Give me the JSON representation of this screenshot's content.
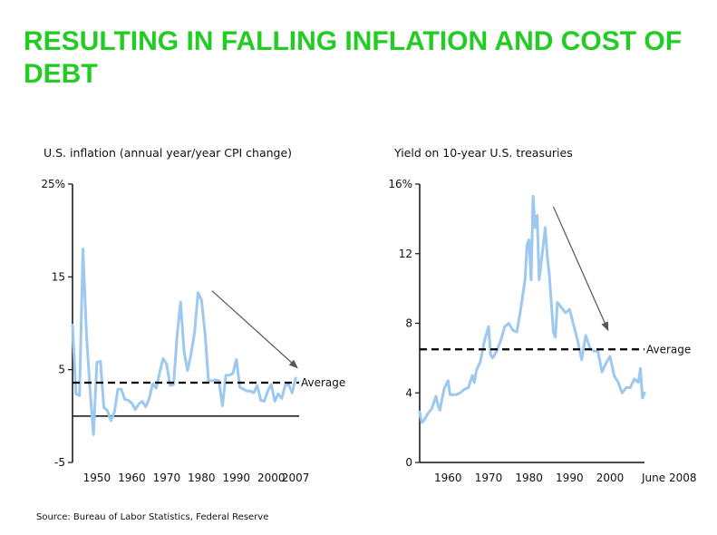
{
  "slide": {
    "title": "RESULTING IN FALLING INFLATION AND COST OF DEBT",
    "source": "Source:  Bureau of Labor Statistics, Federal Reserve"
  },
  "colors": {
    "title": "#22cc22",
    "series": "#9dc8f0",
    "axis": "#111111",
    "arrow": "#555555"
  },
  "chart_data": [
    {
      "type": "line",
      "title": "U.S. inflation (annual year/year CPI change)",
      "xlabel": "",
      "ylabel": "",
      "xlim": [
        1943,
        2008
      ],
      "ylim": [
        -5,
        25
      ],
      "x_ticks": [
        1950,
        1960,
        1970,
        1980,
        1990,
        2000,
        2007
      ],
      "x_tick_labels": [
        "1950",
        "1960",
        "1970",
        "1980",
        "1990",
        "2000",
        "2007"
      ],
      "y_ticks": [
        -5,
        5,
        15,
        25
      ],
      "y_tick_labels": [
        "-5",
        "5",
        "15",
        "25%"
      ],
      "zero_line": true,
      "grid": false,
      "average": {
        "value": 3.6,
        "label": "Average"
      },
      "trend_arrow": {
        "from": [
          1983,
          13.5
        ],
        "to": [
          2007.5,
          5.2
        ]
      },
      "series": [
        {
          "x": [
            1943,
            1944,
            1945,
            1946,
            1947,
            1948,
            1949,
            1950,
            1951,
            1952,
            1953,
            1954,
            1955,
            1956,
            1957,
            1958,
            1959,
            1960,
            1961,
            1962,
            1963,
            1964,
            1965,
            1966,
            1967,
            1968,
            1969,
            1970,
            1971,
            1972,
            1973,
            1974,
            1975,
            1976,
            1977,
            1978,
            1979,
            1980,
            1981,
            1982,
            1983,
            1984,
            1985,
            1986,
            1987,
            1988,
            1989,
            1990,
            1991,
            1992,
            1993,
            1994,
            1995,
            1996,
            1997,
            1998,
            1999,
            2000,
            2001,
            2002,
            2003,
            2004,
            2005,
            2006,
            2007
          ],
          "values": [
            9.8,
            2.4,
            2.2,
            18.0,
            8.8,
            3.0,
            -2.0,
            5.8,
            5.9,
            0.9,
            0.6,
            -0.5,
            0.4,
            2.9,
            2.9,
            1.8,
            1.7,
            1.4,
            0.7,
            1.3,
            1.6,
            1.0,
            1.9,
            3.5,
            3.0,
            4.7,
            6.2,
            5.6,
            3.3,
            3.4,
            8.7,
            12.3,
            6.9,
            4.9,
            6.7,
            9.0,
            13.3,
            12.5,
            8.9,
            3.8,
            3.8,
            3.9,
            3.8,
            1.1,
            4.4,
            4.4,
            4.6,
            6.1,
            3.1,
            2.9,
            2.7,
            2.7,
            2.5,
            3.3,
            1.7,
            1.6,
            2.7,
            3.4,
            1.6,
            2.4,
            1.9,
            3.3,
            3.4,
            2.5,
            4.1
          ]
        }
      ]
    },
    {
      "type": "line",
      "title": "Yield on 10-year U.S. treasuries",
      "xlabel": "",
      "ylabel": "",
      "xlim": [
        1953,
        2008.5
      ],
      "ylim": [
        0,
        16
      ],
      "x_ticks": [
        1960,
        1970,
        1980,
        1990,
        2000,
        2008.5
      ],
      "x_tick_labels": [
        "1960",
        "1970",
        "1980",
        "1990",
        "2000",
        "June 2008"
      ],
      "y_ticks": [
        0,
        4,
        8,
        12,
        16
      ],
      "y_tick_labels": [
        "0",
        "4",
        "8",
        "12",
        "16%"
      ],
      "grid": false,
      "average": {
        "value": 6.5,
        "label": "Average"
      },
      "trend_arrow": {
        "from": [
          1986,
          14.7
        ],
        "to": [
          1999.5,
          7.6
        ]
      },
      "series": [
        {
          "x": [
            1953,
            1953.5,
            1954,
            1955,
            1956,
            1957,
            1957.5,
            1958,
            1959,
            1960,
            1960.5,
            1961,
            1962,
            1963,
            1964,
            1965,
            1966,
            1966.5,
            1967,
            1968,
            1969,
            1970,
            1970.5,
            1971,
            1972,
            1973,
            1974,
            1975,
            1976,
            1977,
            1978,
            1979,
            1979.5,
            1980,
            1980.5,
            1981,
            1981.5,
            1982,
            1982.5,
            1983,
            1984,
            1984.5,
            1985,
            1986,
            1986.5,
            1987,
            1988,
            1989,
            1990,
            1991,
            1992,
            1993,
            1994,
            1995,
            1996,
            1997,
            1998,
            1999,
            2000,
            2001,
            2002,
            2003,
            2004,
            2005,
            2006,
            2007,
            2007.5,
            2008,
            2008.5
          ],
          "values": [
            2.9,
            2.3,
            2.4,
            2.8,
            3.1,
            3.8,
            3.3,
            3.0,
            4.2,
            4.7,
            3.9,
            3.9,
            3.9,
            4.0,
            4.2,
            4.3,
            5.0,
            4.6,
            5.3,
            5.8,
            7.0,
            7.8,
            6.2,
            6.0,
            6.4,
            7.0,
            7.8,
            8.0,
            7.6,
            7.5,
            8.9,
            10.5,
            12.5,
            12.8,
            10.5,
            15.3,
            13.5,
            14.2,
            10.5,
            11.5,
            13.5,
            11.8,
            10.8,
            7.5,
            7.2,
            9.2,
            8.9,
            8.6,
            8.8,
            7.9,
            7.0,
            5.9,
            7.3,
            6.6,
            6.4,
            6.4,
            5.2,
            5.7,
            6.1,
            5.0,
            4.6,
            4.0,
            4.3,
            4.3,
            4.8,
            4.6,
            5.4,
            3.7,
            4.0
          ]
        }
      ]
    }
  ]
}
